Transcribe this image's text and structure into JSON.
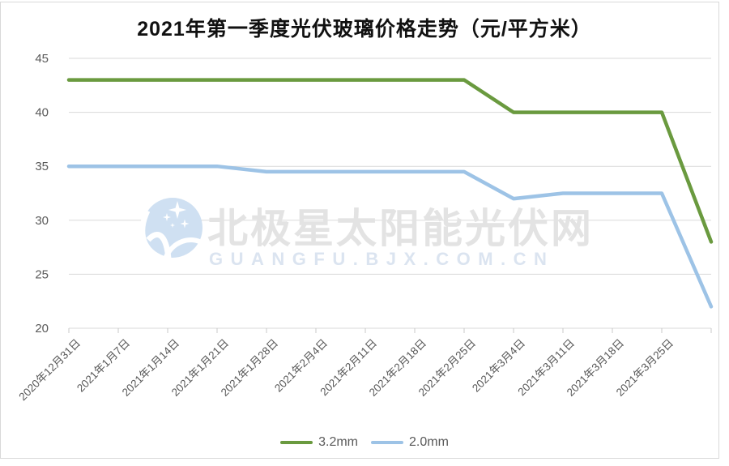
{
  "title": "2021年第一季度光伏玻璃价格走势（元/平方米）",
  "watermark": {
    "brand": "北极星太阳能光伏网",
    "url": "GUANGFU.BJX.COM.CN",
    "logo_color": "#cfe0f2"
  },
  "colors": {
    "gridline": "#d9d9d9",
    "tick": "#c9c9c9",
    "axis_text": "#595959",
    "frame_border": "#d9d9d9"
  },
  "chart_data": {
    "type": "line",
    "title": "2021年第一季度光伏玻璃价格走势（元/平方米）",
    "categories": [
      "2020年12月31日",
      "2021年1月7日",
      "2021年1月14日",
      "2021年1月21日",
      "2021年1月28日",
      "2021年2月4日",
      "2021年2月11日",
      "2021年2月18日",
      "2021年2月25日",
      "2021年3月4日",
      "2021年3月11日",
      "2021年3月18日",
      "2021年3月25日",
      ""
    ],
    "series": [
      {
        "name": "3.2mm",
        "color": "#6A9A3F",
        "values": [
          43,
          43,
          43,
          43,
          43,
          43,
          43,
          43,
          43,
          40,
          40,
          40,
          40,
          28
        ]
      },
      {
        "name": "2.0mm",
        "color": "#9DC3E6",
        "values": [
          35,
          35,
          35,
          35,
          34.5,
          34.5,
          34.5,
          34.5,
          34.5,
          32,
          32.5,
          32.5,
          32.5,
          22
        ]
      }
    ],
    "xlabel": "",
    "ylabel": "",
    "ylim": [
      20,
      45
    ],
    "yticks": [
      20,
      25,
      30,
      35,
      40,
      45
    ],
    "grid": true,
    "legend_position": "bottom"
  }
}
